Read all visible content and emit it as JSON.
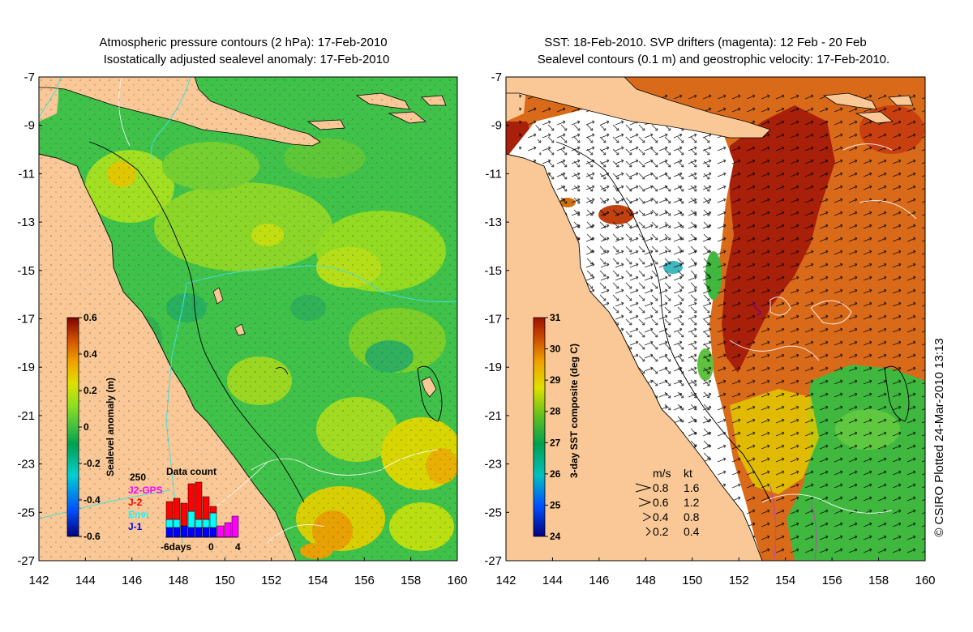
{
  "left_panel": {
    "title_line1": "Atmospheric pressure contours (2 hPa): 17-Feb-2010",
    "title_line2": "Isostatically adjusted sealevel anomaly: 17-Feb-2010",
    "colorbar": {
      "label": "Sealevel anomaly (m)",
      "ticks": [
        "0.6",
        "0.4",
        "0.2",
        "0",
        "-0.2",
        "-0.4",
        "-0.6"
      ],
      "min": -0.6,
      "max": 0.6,
      "colors": [
        "#00007f",
        "#0050ff",
        "#00d0d0",
        "#00a050",
        "#40c040",
        "#90e020",
        "#e0e000",
        "#f0a000",
        "#d05000",
        "#800000"
      ]
    },
    "data_count": {
      "title": "Data count",
      "max_label": "250",
      "xtick_labels": [
        "-6days",
        "0",
        "4"
      ],
      "series": [
        {
          "name": "J2-GPS",
          "color": "#ff00ff"
        },
        {
          "name": "J-2",
          "color": "#ff0000"
        },
        {
          "name": "Envi",
          "color": "#00ffff"
        },
        {
          "name": "J-1",
          "color": "#0000ff"
        }
      ]
    }
  },
  "right_panel": {
    "title_line1": "SST: 18-Feb-2010. SVP drifters (magenta): 12 Feb - 20 Feb",
    "title_line2": "Sealevel contours (0.1 m) and geostrophic velocity: 17-Feb-2010.",
    "colorbar": {
      "label": "3-day SST composite (deg C)",
      "ticks": [
        "31",
        "30",
        "29",
        "28",
        "27",
        "26",
        "25",
        "24"
      ],
      "min": 24,
      "max": 31,
      "colors": [
        "#00007f",
        "#0050ff",
        "#00c0c0",
        "#00a050",
        "#60c020",
        "#e0e000",
        "#f0a000",
        "#d05000",
        "#a01000"
      ]
    },
    "velocity_legend": {
      "header_ms": "m/s",
      "header_kt": "kt",
      "rows": [
        {
          "ms": "0.8",
          "kt": "1.6"
        },
        {
          "ms": "0.6",
          "kt": "1.2"
        },
        {
          "ms": "0.4",
          "kt": "0.8"
        },
        {
          "ms": "0.2",
          "kt": "0.4"
        }
      ]
    }
  },
  "axes": {
    "lat_labels": [
      "-7",
      "-9",
      "-11",
      "-13",
      "-15",
      "-17",
      "-19",
      "-21",
      "-23",
      "-25",
      "-27"
    ],
    "lon_labels": [
      "142",
      "144",
      "146",
      "148",
      "150",
      "152",
      "154",
      "156",
      "158",
      "160"
    ],
    "lat_range": [
      -27,
      -7
    ],
    "lon_range": [
      142,
      160
    ]
  },
  "credit": "© CSIRO Plotted 24-Mar-2010 13:13",
  "colors": {
    "land": "#f9c896",
    "ocean_green": "#3fc14a",
    "sst_dark_red": "#a8200a",
    "sst_orange": "#d96a1a",
    "cloud_white": "#ffffff"
  }
}
